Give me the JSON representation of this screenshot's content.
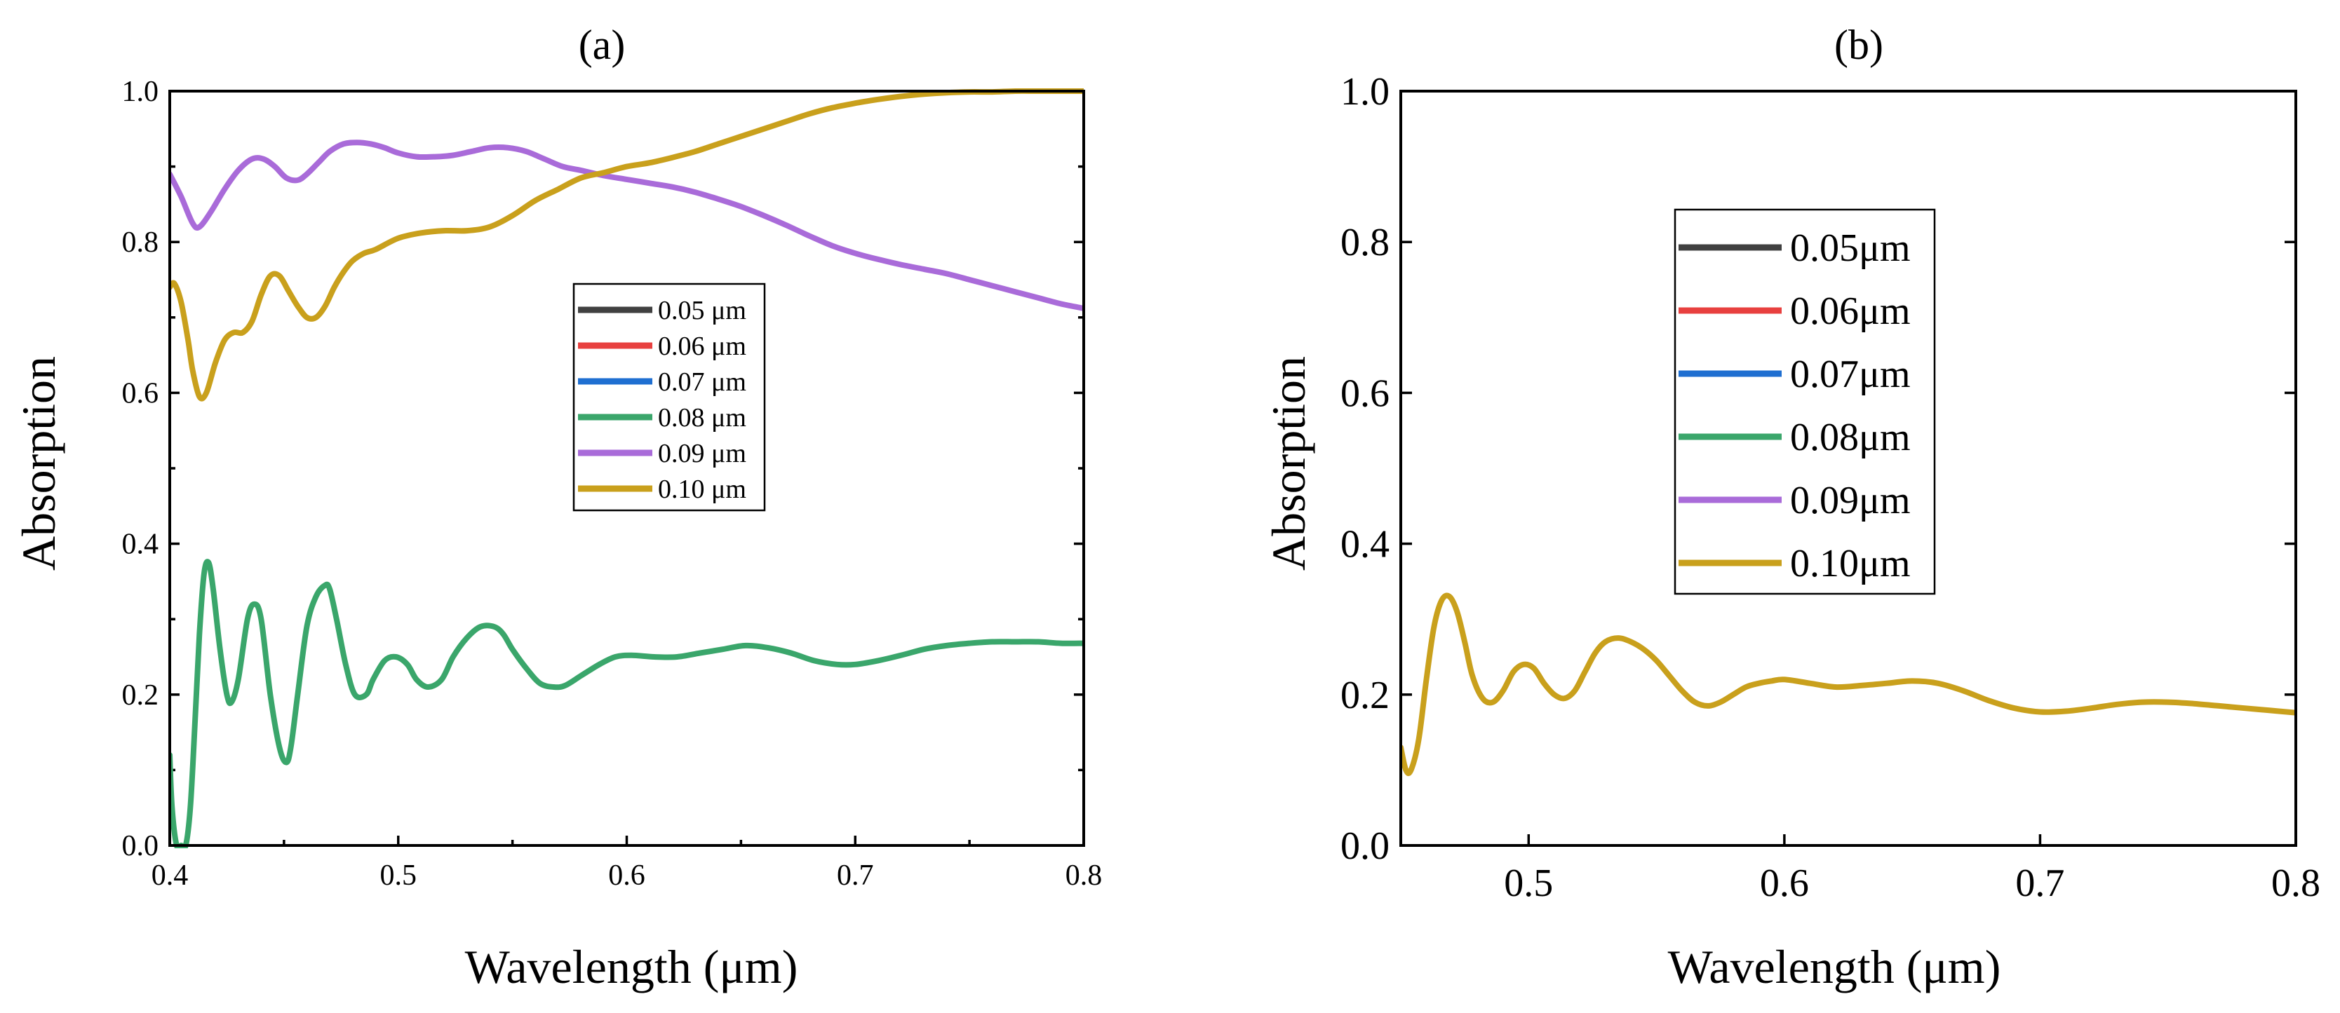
{
  "chart_data": [
    {
      "panel": "(a)",
      "type": "line",
      "title": "(a)",
      "xlabel": "Wavelength (μm)",
      "ylabel": "Absorption",
      "xlim": [
        0.4,
        0.8
      ],
      "ylim": [
        0.0,
        1.0
      ],
      "xticks": [
        "0.4",
        "0.5",
        "0.6",
        "0.7",
        "0.8"
      ],
      "yticks": [
        "0.0",
        "0.2",
        "0.4",
        "0.6",
        "0.8",
        "1.0"
      ],
      "legend_position": "center-right",
      "series": [
        {
          "name": "0.05 μm",
          "color": "#404040",
          "x": [],
          "y": []
        },
        {
          "name": "0.06 μm",
          "color": "#e8403f",
          "x": [],
          "y": []
        },
        {
          "name": "0.07 μm",
          "color": "#1f6fd1",
          "x": [],
          "y": []
        },
        {
          "name": "0.08 μm",
          "color": "#3aa66b",
          "x": [
            0.4,
            0.401,
            0.403,
            0.405,
            0.407,
            0.409,
            0.411,
            0.413,
            0.415,
            0.417,
            0.419,
            0.422,
            0.425,
            0.427,
            0.43,
            0.434,
            0.437,
            0.44,
            0.444,
            0.448,
            0.451,
            0.453,
            0.456,
            0.46,
            0.464,
            0.468,
            0.47,
            0.473,
            0.477,
            0.481,
            0.486,
            0.489,
            0.494,
            0.499,
            0.504,
            0.508,
            0.513,
            0.519,
            0.524,
            0.53,
            0.536,
            0.542,
            0.546,
            0.55,
            0.556,
            0.562,
            0.568,
            0.573,
            0.58,
            0.588,
            0.595,
            0.602,
            0.612,
            0.622,
            0.632,
            0.642,
            0.652,
            0.662,
            0.672,
            0.682,
            0.692,
            0.7,
            0.71,
            0.72,
            0.73,
            0.74,
            0.75,
            0.76,
            0.77,
            0.78,
            0.79,
            0.8
          ],
          "y": [
            0.12,
            0.05,
            0.0,
            0.0,
            0.0,
            0.05,
            0.16,
            0.28,
            0.36,
            0.375,
            0.34,
            0.26,
            0.2,
            0.19,
            0.22,
            0.3,
            0.32,
            0.3,
            0.2,
            0.13,
            0.11,
            0.13,
            0.2,
            0.29,
            0.33,
            0.345,
            0.34,
            0.3,
            0.24,
            0.2,
            0.2,
            0.22,
            0.245,
            0.25,
            0.24,
            0.22,
            0.21,
            0.22,
            0.25,
            0.275,
            0.29,
            0.29,
            0.28,
            0.26,
            0.235,
            0.215,
            0.21,
            0.212,
            0.225,
            0.24,
            0.25,
            0.252,
            0.25,
            0.25,
            0.255,
            0.26,
            0.265,
            0.262,
            0.255,
            0.245,
            0.24,
            0.24,
            0.245,
            0.252,
            0.26,
            0.265,
            0.268,
            0.27,
            0.27,
            0.27,
            0.268,
            0.268
          ]
        },
        {
          "name": "0.09 μm",
          "color": "#a96bd9",
          "x": [
            0.4,
            0.405,
            0.41,
            0.413,
            0.418,
            0.424,
            0.43,
            0.436,
            0.441,
            0.446,
            0.451,
            0.456,
            0.46,
            0.465,
            0.47,
            0.476,
            0.482,
            0.488,
            0.494,
            0.5,
            0.508,
            0.516,
            0.524,
            0.532,
            0.54,
            0.548,
            0.556,
            0.564,
            0.572,
            0.58,
            0.59,
            0.6,
            0.61,
            0.62,
            0.63,
            0.64,
            0.65,
            0.66,
            0.67,
            0.68,
            0.69,
            0.7,
            0.71,
            0.72,
            0.73,
            0.74,
            0.75,
            0.76,
            0.77,
            0.78,
            0.79,
            0.8
          ],
          "y": [
            0.89,
            0.86,
            0.825,
            0.82,
            0.84,
            0.87,
            0.895,
            0.91,
            0.91,
            0.9,
            0.885,
            0.882,
            0.89,
            0.905,
            0.92,
            0.93,
            0.932,
            0.93,
            0.925,
            0.918,
            0.913,
            0.913,
            0.915,
            0.92,
            0.925,
            0.925,
            0.92,
            0.91,
            0.9,
            0.895,
            0.888,
            0.883,
            0.878,
            0.873,
            0.866,
            0.857,
            0.847,
            0.835,
            0.822,
            0.808,
            0.795,
            0.785,
            0.777,
            0.77,
            0.764,
            0.758,
            0.75,
            0.742,
            0.734,
            0.726,
            0.718,
            0.712
          ]
        },
        {
          "name": "0.10 μm",
          "color": "#c9a01c",
          "x": [
            0.4,
            0.402,
            0.405,
            0.408,
            0.41,
            0.413,
            0.416,
            0.42,
            0.424,
            0.428,
            0.432,
            0.436,
            0.44,
            0.444,
            0.448,
            0.452,
            0.456,
            0.46,
            0.464,
            0.468,
            0.472,
            0.476,
            0.48,
            0.485,
            0.49,
            0.5,
            0.51,
            0.52,
            0.53,
            0.54,
            0.55,
            0.56,
            0.57,
            0.58,
            0.59,
            0.6,
            0.61,
            0.62,
            0.63,
            0.64,
            0.65,
            0.66,
            0.67,
            0.68,
            0.69,
            0.7,
            0.71,
            0.72,
            0.73,
            0.74,
            0.75,
            0.76,
            0.77,
            0.78,
            0.79,
            0.8
          ],
          "y": [
            0.74,
            0.745,
            0.72,
            0.67,
            0.63,
            0.595,
            0.6,
            0.64,
            0.67,
            0.68,
            0.68,
            0.695,
            0.73,
            0.755,
            0.755,
            0.735,
            0.715,
            0.7,
            0.7,
            0.715,
            0.74,
            0.76,
            0.775,
            0.785,
            0.79,
            0.805,
            0.812,
            0.815,
            0.815,
            0.82,
            0.835,
            0.855,
            0.87,
            0.885,
            0.892,
            0.9,
            0.905,
            0.912,
            0.92,
            0.93,
            0.94,
            0.95,
            0.96,
            0.97,
            0.978,
            0.984,
            0.989,
            0.993,
            0.996,
            0.998,
            0.999,
            0.999,
            1.0,
            1.0,
            1.0,
            1.0
          ]
        }
      ]
    },
    {
      "panel": "(b)",
      "type": "line",
      "title": "(b)",
      "xlabel": "Wavelength (μm)",
      "ylabel": "Absorption",
      "xlim": [
        0.45,
        0.8
      ],
      "ylim": [
        0.0,
        1.0
      ],
      "xticks": [
        "0.5",
        "0.6",
        "0.7",
        "0.8"
      ],
      "yticks": [
        "0.0",
        "0.2",
        "0.4",
        "0.6",
        "0.8",
        "1.0"
      ],
      "legend_position": "upper-center-left",
      "series": [
        {
          "name": "0.05μm",
          "color": "#404040",
          "x": [],
          "y": []
        },
        {
          "name": "0.06μm",
          "color": "#e8403f",
          "x": [],
          "y": []
        },
        {
          "name": "0.07μm",
          "color": "#1f6fd1",
          "x": [],
          "y": []
        },
        {
          "name": "0.08μm",
          "color": "#3aa66b",
          "x": [],
          "y": []
        },
        {
          "name": "0.09μm",
          "color": "#a96bd9",
          "x": [],
          "y": []
        },
        {
          "name": "0.10μm",
          "color": "#c9a01c",
          "x": [
            0.45,
            0.452,
            0.454,
            0.457,
            0.46,
            0.463,
            0.466,
            0.469,
            0.472,
            0.475,
            0.478,
            0.482,
            0.486,
            0.49,
            0.494,
            0.498,
            0.502,
            0.506,
            0.51,
            0.514,
            0.518,
            0.522,
            0.526,
            0.53,
            0.535,
            0.54,
            0.545,
            0.55,
            0.555,
            0.56,
            0.565,
            0.57,
            0.575,
            0.58,
            0.585,
            0.59,
            0.595,
            0.6,
            0.61,
            0.62,
            0.63,
            0.64,
            0.65,
            0.66,
            0.67,
            0.68,
            0.69,
            0.7,
            0.71,
            0.72,
            0.73,
            0.74,
            0.75,
            0.76,
            0.77,
            0.78,
            0.79,
            0.8
          ],
          "y": [
            0.13,
            0.1,
            0.1,
            0.14,
            0.22,
            0.29,
            0.325,
            0.33,
            0.31,
            0.27,
            0.225,
            0.195,
            0.19,
            0.205,
            0.23,
            0.24,
            0.235,
            0.215,
            0.2,
            0.195,
            0.205,
            0.23,
            0.255,
            0.27,
            0.275,
            0.27,
            0.26,
            0.245,
            0.225,
            0.205,
            0.19,
            0.185,
            0.19,
            0.2,
            0.21,
            0.215,
            0.218,
            0.22,
            0.215,
            0.21,
            0.212,
            0.215,
            0.218,
            0.215,
            0.205,
            0.192,
            0.182,
            0.177,
            0.178,
            0.182,
            0.187,
            0.19,
            0.19,
            0.188,
            0.185,
            0.182,
            0.179,
            0.176
          ]
        }
      ]
    }
  ]
}
